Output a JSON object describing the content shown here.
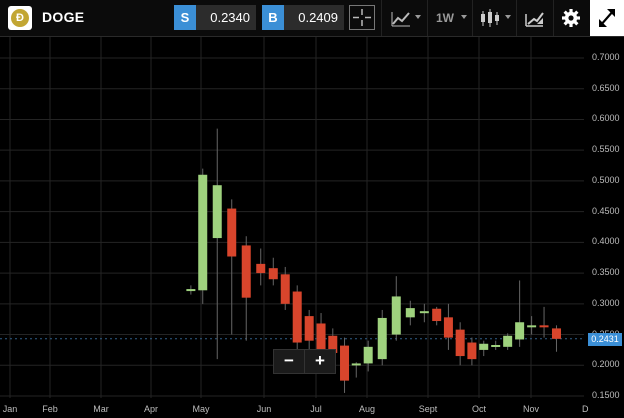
{
  "toolbar": {
    "symbol": "DOGE",
    "sell_tag": "S",
    "sell_price": "0.2340",
    "buy_tag": "B",
    "buy_price": "0.2409",
    "interval": "1W"
  },
  "icons": [
    "doge-logo-icon",
    "crosshair-icon",
    "line-chart-icon",
    "candlestick-icon",
    "drawing-tool-icon",
    "gear-icon",
    "expand-icon"
  ],
  "colors": {
    "bull": "#9fd27e",
    "bear": "#d8452c",
    "accent": "#3b8fd6"
  },
  "zoom": {
    "minus": "−",
    "plus": "+"
  },
  "current_price_label": "0.2431",
  "chart_data": {
    "type": "candlestick",
    "x_tick_labels": [
      "Jan",
      "Feb",
      "Mar",
      "Apr",
      "May",
      "Jun",
      "Jul",
      "Aug",
      "Sept",
      "Oct",
      "Nov",
      "D"
    ],
    "y_tick_labels": [
      "0.7000",
      "0.6500",
      "0.6000",
      "0.5500",
      "0.5000",
      "0.4500",
      "0.4000",
      "0.3500",
      "0.3000",
      "0.2500",
      "0.2000",
      "0.1500"
    ],
    "ylim": [
      0.15,
      0.7
    ],
    "grid": true,
    "current_price": 0.2431,
    "candles": [
      {
        "week": 16.5,
        "open": 0.322,
        "high": 0.33,
        "low": 0.315,
        "close": 0.324
      },
      {
        "week": 17.5,
        "open": 0.322,
        "high": 0.52,
        "low": 0.3,
        "close": 0.51
      },
      {
        "week": 18.5,
        "open": 0.407,
        "high": 0.585,
        "low": 0.21,
        "close": 0.493
      },
      {
        "week": 19.5,
        "open": 0.455,
        "high": 0.47,
        "low": 0.25,
        "close": 0.377
      },
      {
        "week": 20.5,
        "open": 0.395,
        "high": 0.41,
        "low": 0.24,
        "close": 0.31
      },
      {
        "week": 21.5,
        "open": 0.365,
        "high": 0.39,
        "low": 0.33,
        "close": 0.35
      },
      {
        "week": 22.5,
        "open": 0.358,
        "high": 0.375,
        "low": 0.33,
        "close": 0.34
      },
      {
        "week": 23.5,
        "open": 0.348,
        "high": 0.36,
        "low": 0.29,
        "close": 0.3
      },
      {
        "week": 24.5,
        "open": 0.32,
        "high": 0.33,
        "low": 0.22,
        "close": 0.237
      },
      {
        "week": 25.5,
        "open": 0.28,
        "high": 0.29,
        "low": 0.225,
        "close": 0.24
      },
      {
        "week": 26.5,
        "open": 0.268,
        "high": 0.285,
        "low": 0.2,
        "close": 0.21
      },
      {
        "week": 27.5,
        "open": 0.248,
        "high": 0.26,
        "low": 0.19,
        "close": 0.22
      },
      {
        "week": 28.5,
        "open": 0.232,
        "high": 0.245,
        "low": 0.155,
        "close": 0.175
      },
      {
        "week": 29.5,
        "open": 0.2,
        "high": 0.205,
        "low": 0.18,
        "close": 0.203
      },
      {
        "week": 30.5,
        "open": 0.203,
        "high": 0.24,
        "low": 0.19,
        "close": 0.23
      },
      {
        "week": 31.5,
        "open": 0.21,
        "high": 0.29,
        "low": 0.2,
        "close": 0.277
      },
      {
        "week": 32.5,
        "open": 0.25,
        "high": 0.345,
        "low": 0.24,
        "close": 0.312
      },
      {
        "week": 33.5,
        "open": 0.278,
        "high": 0.305,
        "low": 0.265,
        "close": 0.293
      },
      {
        "week": 34.5,
        "open": 0.285,
        "high": 0.3,
        "low": 0.27,
        "close": 0.288
      },
      {
        "week": 35.5,
        "open": 0.292,
        "high": 0.295,
        "low": 0.265,
        "close": 0.272
      },
      {
        "week": 36.5,
        "open": 0.278,
        "high": 0.3,
        "low": 0.225,
        "close": 0.245
      },
      {
        "week": 37.5,
        "open": 0.258,
        "high": 0.27,
        "low": 0.2,
        "close": 0.215
      },
      {
        "week": 38.5,
        "open": 0.237,
        "high": 0.245,
        "low": 0.2,
        "close": 0.21
      },
      {
        "week": 39.5,
        "open": 0.225,
        "high": 0.24,
        "low": 0.215,
        "close": 0.235
      },
      {
        "week": 40.5,
        "open": 0.23,
        "high": 0.24,
        "low": 0.225,
        "close": 0.233
      },
      {
        "week": 41.5,
        "open": 0.23,
        "high": 0.252,
        "low": 0.225,
        "close": 0.248
      },
      {
        "week": 42.5,
        "open": 0.242,
        "high": 0.338,
        "low": 0.23,
        "close": 0.27
      },
      {
        "week": 43.5,
        "open": 0.262,
        "high": 0.28,
        "low": 0.25,
        "close": 0.265
      },
      {
        "week": 44.5,
        "open": 0.265,
        "high": 0.295,
        "low": 0.245,
        "close": 0.262
      },
      {
        "week": 45.5,
        "open": 0.26,
        "high": 0.265,
        "low": 0.222,
        "close": 0.243
      }
    ]
  }
}
